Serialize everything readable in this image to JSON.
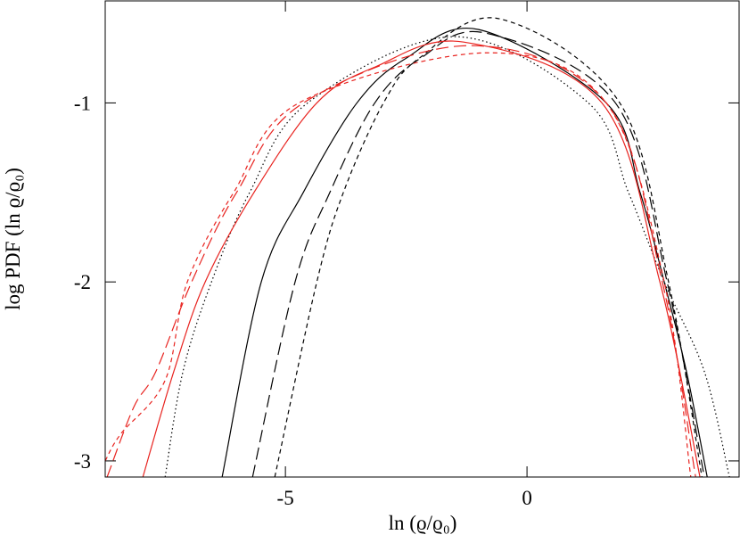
{
  "chart_data": {
    "type": "line",
    "x_label": "ln (ϱ/ϱ₀)",
    "y_label": "log PDF (ln ϱ/ϱ₀)",
    "xlim": [
      -8.73,
      4.39
    ],
    "ylim": [
      -3.09,
      -0.43
    ],
    "xticks": [
      -5,
      0
    ],
    "yticks": [
      -3,
      -2,
      -1
    ],
    "series": [
      {
        "color": "#000000",
        "dash": "solid",
        "x": [
          -6.31,
          -5.5,
          -4.63,
          -3.52,
          -2.5,
          -1.0,
          1.64,
          2.34,
          2.84,
          3.3,
          3.73
        ],
        "values": [
          -3.09,
          -2.0,
          -1.5,
          -1.0,
          -0.75,
          -0.59,
          -1.0,
          -1.5,
          -2.0,
          -2.5,
          -3.09
        ]
      },
      {
        "color": "#000000",
        "dash": "long",
        "x": [
          -5.68,
          -4.8,
          -4.08,
          -3.15,
          -2.2,
          -0.85,
          1.83,
          2.9,
          3.67
        ],
        "values": [
          -3.09,
          -2.0,
          -1.5,
          -1.0,
          -0.75,
          -0.61,
          -1.0,
          -2.0,
          -3.09
        ]
      },
      {
        "color": "#000000",
        "dash": "short",
        "x": [
          -5.22,
          -4.35,
          -3.8,
          -2.97,
          -2.23,
          -0.57,
          1.92,
          2.93,
          3.62
        ],
        "values": [
          -3.09,
          -2.0,
          -1.5,
          -1.0,
          -0.75,
          -0.53,
          -1.0,
          -2.0,
          -3.09
        ]
      },
      {
        "color": "#000000",
        "dash": "dotted",
        "x": [
          -7.49,
          -7.12,
          -6.53,
          -5.74,
          -4.54,
          -1.5,
          1.27,
          2.1,
          2.84,
          3.67,
          4.19
        ],
        "values": [
          -3.09,
          -2.5,
          -2.0,
          -1.5,
          -1.0,
          -0.63,
          -1.0,
          -1.5,
          -2.0,
          -2.5,
          -3.09
        ]
      },
      {
        "color": "#e8231f",
        "dash": "solid",
        "x": [
          -7.95,
          -7.31,
          -6.66,
          -5.65,
          -4.35,
          -3.15,
          -1.31,
          1.55,
          2.75,
          3.58
        ],
        "values": [
          -3.09,
          -2.5,
          -2.0,
          -1.5,
          -1.0,
          -0.8,
          -0.66,
          -1.0,
          -2.0,
          -3.09
        ]
      },
      {
        "color": "#e8231f",
        "dash": "long",
        "x": [
          -8.69,
          -8.14,
          -7.68,
          -6.94,
          -6.01,
          -4.63,
          -1.2,
          1.64,
          2.8,
          3.49
        ],
        "values": [
          -3.09,
          -2.7,
          -2.5,
          -2.0,
          -1.5,
          -1.0,
          -0.68,
          -1.0,
          -2.0,
          -3.09
        ]
      },
      {
        "color": "#e8231f",
        "dash": "short",
        "x": [
          -8.73,
          -8.41,
          -7.49,
          -7.03,
          -6.07,
          -4.72,
          -0.8,
          1.64,
          2.84,
          3.39
        ],
        "values": [
          -3.0,
          -2.85,
          -2.55,
          -2.0,
          -1.5,
          -1.0,
          -0.72,
          -1.0,
          -2.0,
          -3.09
        ]
      }
    ]
  }
}
